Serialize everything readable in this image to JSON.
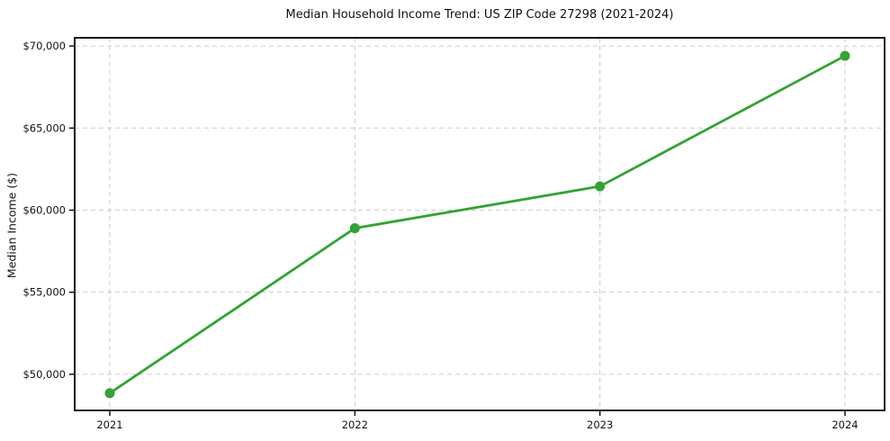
{
  "title": "Median Household Income Trend: US ZIP Code 27298 (2021-2024)",
  "chart_data": {
    "type": "line",
    "title": "Median Household Income Trend: US ZIP Code 27298 (2021-2024)",
    "xlabel": "",
    "ylabel": "Median Income ($)",
    "categories": [
      "2021",
      "2022",
      "2023",
      "2024"
    ],
    "series": [
      {
        "name": "Median Household Income",
        "values": [
          48850,
          58900,
          61450,
          69400
        ]
      }
    ],
    "y_ticks": [
      50000,
      55000,
      60000,
      65000,
      70000
    ],
    "y_tick_labels": [
      "$50,000",
      "$55,000",
      "$60,000",
      "$65,000",
      "$70,000"
    ],
    "ylim": [
      47800,
      70500
    ],
    "grid": true,
    "grid_style": "dashed",
    "legend_position": "none"
  },
  "colors": {
    "line": "#33a333",
    "marker": "#33a333",
    "grid": "#cccccc",
    "frame": "#000000",
    "text": "#111111",
    "background": "#ffffff"
  }
}
